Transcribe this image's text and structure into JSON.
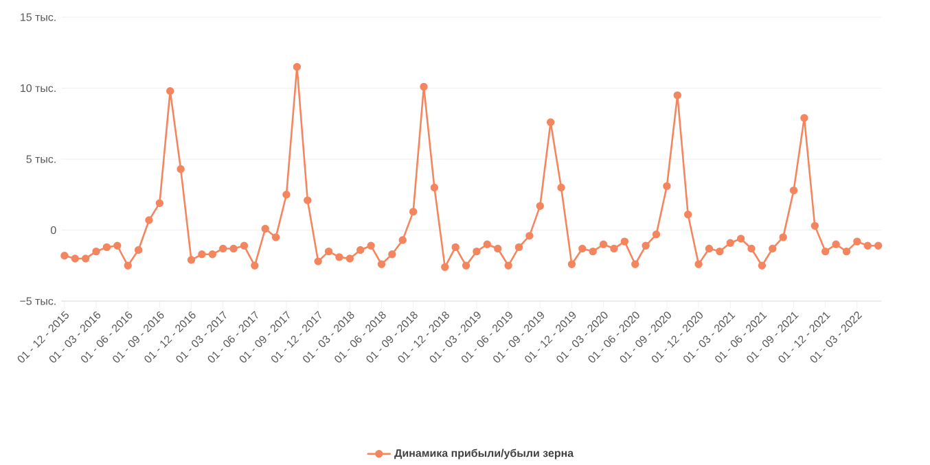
{
  "chart_data": {
    "type": "line",
    "categories": [
      "01 - 12 - 2015",
      null,
      null,
      "01 - 03 - 2016",
      null,
      null,
      "01 - 06 - 2016",
      null,
      null,
      "01 - 09 - 2016",
      null,
      null,
      "01 - 12 - 2016",
      null,
      null,
      "01 - 03 - 2017",
      null,
      null,
      "01 - 06 - 2017",
      null,
      null,
      "01 - 09 - 2017",
      null,
      null,
      "01 - 12 - 2017",
      null,
      null,
      "01 - 03 - 2018",
      null,
      null,
      "01 - 06 - 2018",
      null,
      null,
      "01 - 09 - 2018",
      null,
      null,
      "01 - 12 - 2018",
      null,
      null,
      "01 - 03 - 2019",
      null,
      null,
      "01 - 06 - 2019",
      null,
      null,
      "01 - 09 - 2019",
      null,
      null,
      "01 - 12 - 2019",
      null,
      null,
      "01 - 03 - 2020",
      null,
      null,
      "01 - 06 - 2020",
      null,
      null,
      "01 - 09 - 2020",
      null,
      null,
      "01 - 12 - 2020",
      null,
      null,
      "01 - 03 - 2021",
      null,
      null,
      "01 - 06 - 2021",
      null,
      null,
      "01 - 09 - 2021",
      null,
      null,
      "01 - 12 - 2021",
      null,
      null,
      "01 - 03 - 2022",
      null,
      null
    ],
    "series": [
      {
        "name": "Динамика прибыли/убыли зерна",
        "color": "#f4865f",
        "values": [
          -1.8,
          -2.0,
          -2.0,
          -1.5,
          -1.2,
          -1.1,
          -2.5,
          -1.4,
          0.7,
          1.9,
          9.8,
          4.3,
          -2.1,
          -1.7,
          -1.7,
          -1.3,
          -1.3,
          -1.1,
          -2.5,
          0.1,
          -0.5,
          2.5,
          11.5,
          2.1,
          -2.2,
          -1.5,
          -1.9,
          -2.0,
          -1.4,
          -1.1,
          -2.4,
          -1.7,
          -0.7,
          1.3,
          10.1,
          3.0,
          -2.6,
          -1.2,
          -2.5,
          -1.5,
          -1.0,
          -1.3,
          -2.5,
          -1.2,
          -0.4,
          1.7,
          7.6,
          3.0,
          -2.4,
          -1.3,
          -1.5,
          -1.0,
          -1.3,
          -0.8,
          -2.4,
          -1.1,
          -0.3,
          3.1,
          9.5,
          1.1,
          -2.4,
          -1.3,
          -1.5,
          -0.9,
          -0.6,
          -1.3,
          -2.5,
          -1.3,
          -0.5,
          2.8,
          7.9,
          0.3,
          -1.5,
          -1.0,
          -1.5,
          -0.8,
          -1.1,
          -1.1
        ]
      }
    ],
    "ylim": [
      -5,
      15
    ],
    "yticks": [
      {
        "value": -5,
        "label": "−5 тыс."
      },
      {
        "value": 0,
        "label": "0"
      },
      {
        "value": 5,
        "label": "5 тыс."
      },
      {
        "value": 10,
        "label": "10 тыс."
      },
      {
        "value": 15,
        "label": "15 тыс."
      }
    ],
    "grid": "y",
    "legend": "bottom",
    "marker": "circle"
  }
}
